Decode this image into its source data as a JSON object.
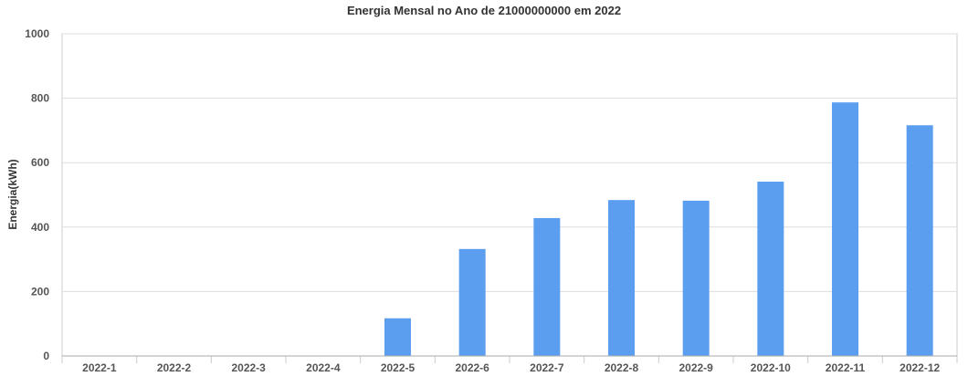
{
  "chart_data": {
    "type": "bar",
    "title": "Energia Mensal no Ano de 21000000000 em 2022",
    "ylabel": "Energia(kWh)",
    "xlabel": "",
    "categories": [
      "2022-1",
      "2022-2",
      "2022-3",
      "2022-4",
      "2022-5",
      "2022-6",
      "2022-7",
      "2022-8",
      "2022-9",
      "2022-10",
      "2022-11",
      "2022-12"
    ],
    "values": [
      0,
      0,
      0,
      0,
      117,
      332,
      428,
      484,
      482,
      541,
      787,
      716
    ],
    "ylim": [
      0,
      1000
    ],
    "yticks": [
      0,
      200,
      400,
      600,
      800,
      1000
    ],
    "grid": true,
    "bar_color": "#5b9ef0"
  }
}
